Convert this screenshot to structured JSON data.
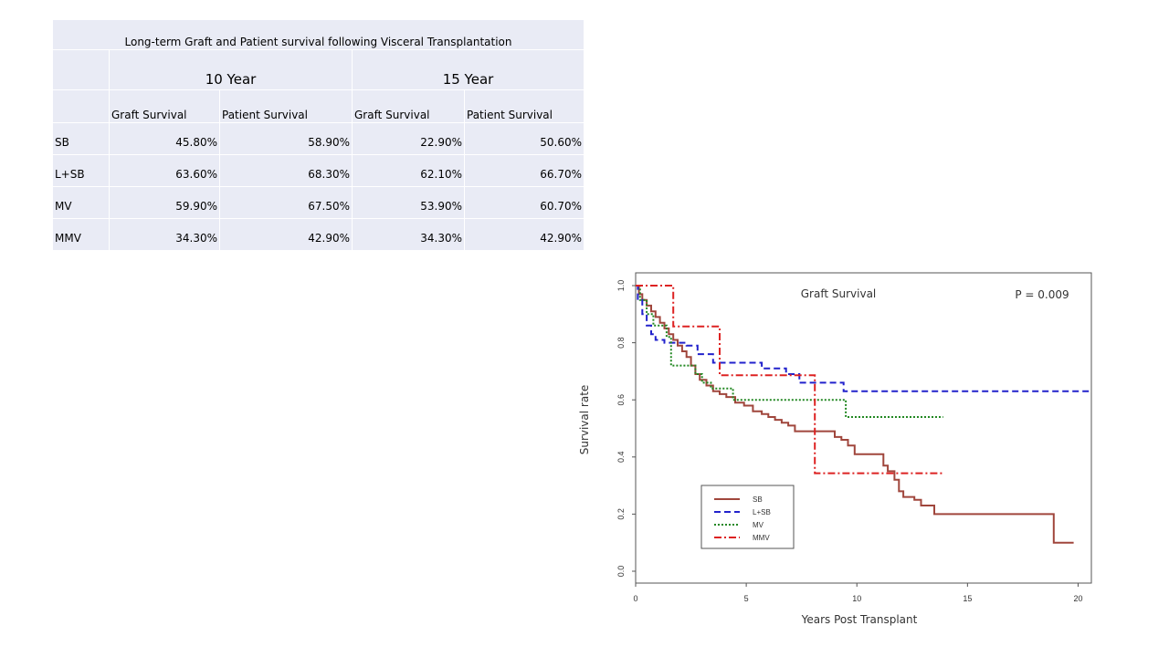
{
  "table": {
    "title": "Long-term Graft and Patient survival following Visceral Transplantation",
    "groups": [
      "10 Year",
      "15 Year"
    ],
    "subheaders": [
      "Graft Survival",
      "Patient Survival",
      "Graft Survival",
      "Patient Survival"
    ],
    "rows": [
      {
        "label": "SB",
        "values": [
          "45.80%",
          "58.90%",
          "22.90%",
          "50.60%"
        ]
      },
      {
        "label": "L+SB",
        "values": [
          "63.60%",
          "68.30%",
          "62.10%",
          "66.70%"
        ]
      },
      {
        "label": "MV",
        "values": [
          "59.90%",
          "67.50%",
          "53.90%",
          "60.70%"
        ]
      },
      {
        "label": "MMV",
        "values": [
          "34.30%",
          "42.90%",
          "34.30%",
          "42.90%"
        ]
      }
    ]
  },
  "chart_data": {
    "type": "line",
    "step": true,
    "title": "Graft Survival",
    "annotation": "P = 0.009",
    "xlabel": "Years Post Transplant",
    "ylabel": "Survival rate",
    "xlim": [
      0,
      20.6
    ],
    "ylim": [
      0,
      1.0
    ],
    "xticks": [
      "0",
      "5",
      "10",
      "15",
      "20"
    ],
    "yticks": [
      "0.0",
      "0.2",
      "0.4",
      "0.6",
      "0.8",
      "1.0"
    ],
    "legend_position": "bottom-left",
    "series": [
      {
        "name": "SB",
        "color": "#a0463c",
        "dash": "solid",
        "x": [
          0,
          0.15,
          0.3,
          0.5,
          0.7,
          0.9,
          1.1,
          1.3,
          1.5,
          1.7,
          1.9,
          2.1,
          2.3,
          2.5,
          2.7,
          2.9,
          3.2,
          3.5,
          3.8,
          4.1,
          4.5,
          4.9,
          5.3,
          5.7,
          6.0,
          6.3,
          6.6,
          6.9,
          7.2,
          9.0,
          9.3,
          9.6,
          9.9,
          11.2,
          11.4,
          11.7,
          11.9,
          12.1,
          12.6,
          12.9,
          13.5,
          18.9,
          19.8
        ],
        "y": [
          1.0,
          0.97,
          0.95,
          0.93,
          0.91,
          0.89,
          0.87,
          0.85,
          0.83,
          0.81,
          0.79,
          0.77,
          0.75,
          0.72,
          0.69,
          0.67,
          0.65,
          0.63,
          0.62,
          0.61,
          0.59,
          0.58,
          0.56,
          0.55,
          0.54,
          0.53,
          0.52,
          0.51,
          0.49,
          0.47,
          0.46,
          0.44,
          0.41,
          0.37,
          0.35,
          0.32,
          0.28,
          0.26,
          0.25,
          0.23,
          0.2,
          0.1,
          0.1
        ]
      },
      {
        "name": "L+SB",
        "color": "#2222cc",
        "dash": "dashed",
        "x": [
          0,
          0.1,
          0.3,
          0.5,
          0.7,
          0.9,
          1.3,
          2.3,
          2.8,
          3.5,
          5.7,
          6.8,
          7.4,
          9.4,
          20.6
        ],
        "y": [
          1.0,
          0.95,
          0.9,
          0.86,
          0.83,
          0.81,
          0.8,
          0.79,
          0.76,
          0.73,
          0.71,
          0.69,
          0.66,
          0.63,
          0.63
        ]
      },
      {
        "name": "MV",
        "color": "#228822",
        "dash": "dotted",
        "x": [
          0,
          0.2,
          0.5,
          0.8,
          1.4,
          1.6,
          2.7,
          3.0,
          3.4,
          4.4,
          9.5,
          13.9
        ],
        "y": [
          1.0,
          0.95,
          0.9,
          0.86,
          0.82,
          0.72,
          0.69,
          0.66,
          0.64,
          0.6,
          0.54,
          0.54
        ]
      },
      {
        "name": "MMV",
        "color": "#dd2222",
        "dash": "dashdot",
        "x": [
          0,
          1.7,
          3.8,
          8.1,
          13.9
        ],
        "y": [
          1.0,
          0.857,
          0.686,
          0.343,
          0.343
        ]
      }
    ]
  }
}
